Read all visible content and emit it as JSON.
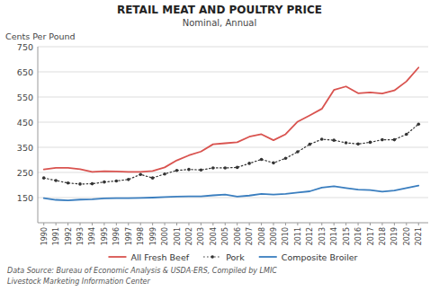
{
  "chart_data": {
    "type": "line",
    "title": "RETAIL MEAT AND POULTRY PRICE",
    "subtitle": "Nominal, Annual",
    "ylabel": "Cents Per Pound",
    "annotations": [
      "Data Source: Bureau of Economic Analysis & USDA-ERS, Compiled by LMIC",
      "Livestock Marketing Information Center"
    ],
    "x": [
      1990,
      1991,
      1992,
      1993,
      1994,
      1995,
      1996,
      1997,
      1998,
      1999,
      2000,
      2001,
      2002,
      2003,
      2004,
      2005,
      2006,
      2007,
      2008,
      2009,
      2010,
      2011,
      2012,
      2013,
      2014,
      2015,
      2016,
      2017,
      2018,
      2019,
      2020,
      2021
    ],
    "xlim": [
      1989.5,
      2021.8
    ],
    "xticks": [
      1990,
      1991,
      1992,
      1993,
      1994,
      1995,
      1996,
      1997,
      1998,
      1999,
      2000,
      2001,
      2002,
      2003,
      2004,
      2005,
      2006,
      2007,
      2008,
      2009,
      2010,
      2011,
      2012,
      2013,
      2014,
      2015,
      2016,
      2017,
      2018,
      2019,
      2020,
      2021
    ],
    "ylim": [
      50,
      750
    ],
    "yticks": [
      150,
      250,
      350,
      450,
      550,
      650,
      750
    ],
    "grid": true,
    "legend": "bottom",
    "series": [
      {
        "name": "All Fresh Beef",
        "color": "#d9534f",
        "line_style": "solid",
        "values": [
          262,
          268,
          268,
          263,
          252,
          255,
          254,
          252,
          252,
          256,
          270,
          298,
          318,
          333,
          362,
          366,
          370,
          392,
          402,
          378,
          402,
          452,
          477,
          503,
          578,
          592,
          565,
          568,
          564,
          576,
          612,
          667
        ]
      },
      {
        "name": "Pork",
        "color": "#333333",
        "line_style": "dotted",
        "marker": "dot",
        "values": [
          228,
          218,
          208,
          204,
          205,
          212,
          216,
          222,
          242,
          228,
          244,
          258,
          262,
          260,
          268,
          268,
          270,
          286,
          302,
          288,
          306,
          332,
          362,
          382,
          378,
          368,
          363,
          370,
          380,
          380,
          402,
          442
        ]
      },
      {
        "name": "Composite Broiler",
        "color": "#3a7ebf",
        "line_style": "solid",
        "values": [
          148,
          141,
          139,
          142,
          143,
          147,
          148,
          148,
          149,
          150,
          152,
          154,
          155,
          155,
          159,
          162,
          154,
          158,
          165,
          162,
          165,
          170,
          175,
          190,
          195,
          188,
          182,
          180,
          174,
          178,
          188,
          198
        ]
      }
    ]
  }
}
